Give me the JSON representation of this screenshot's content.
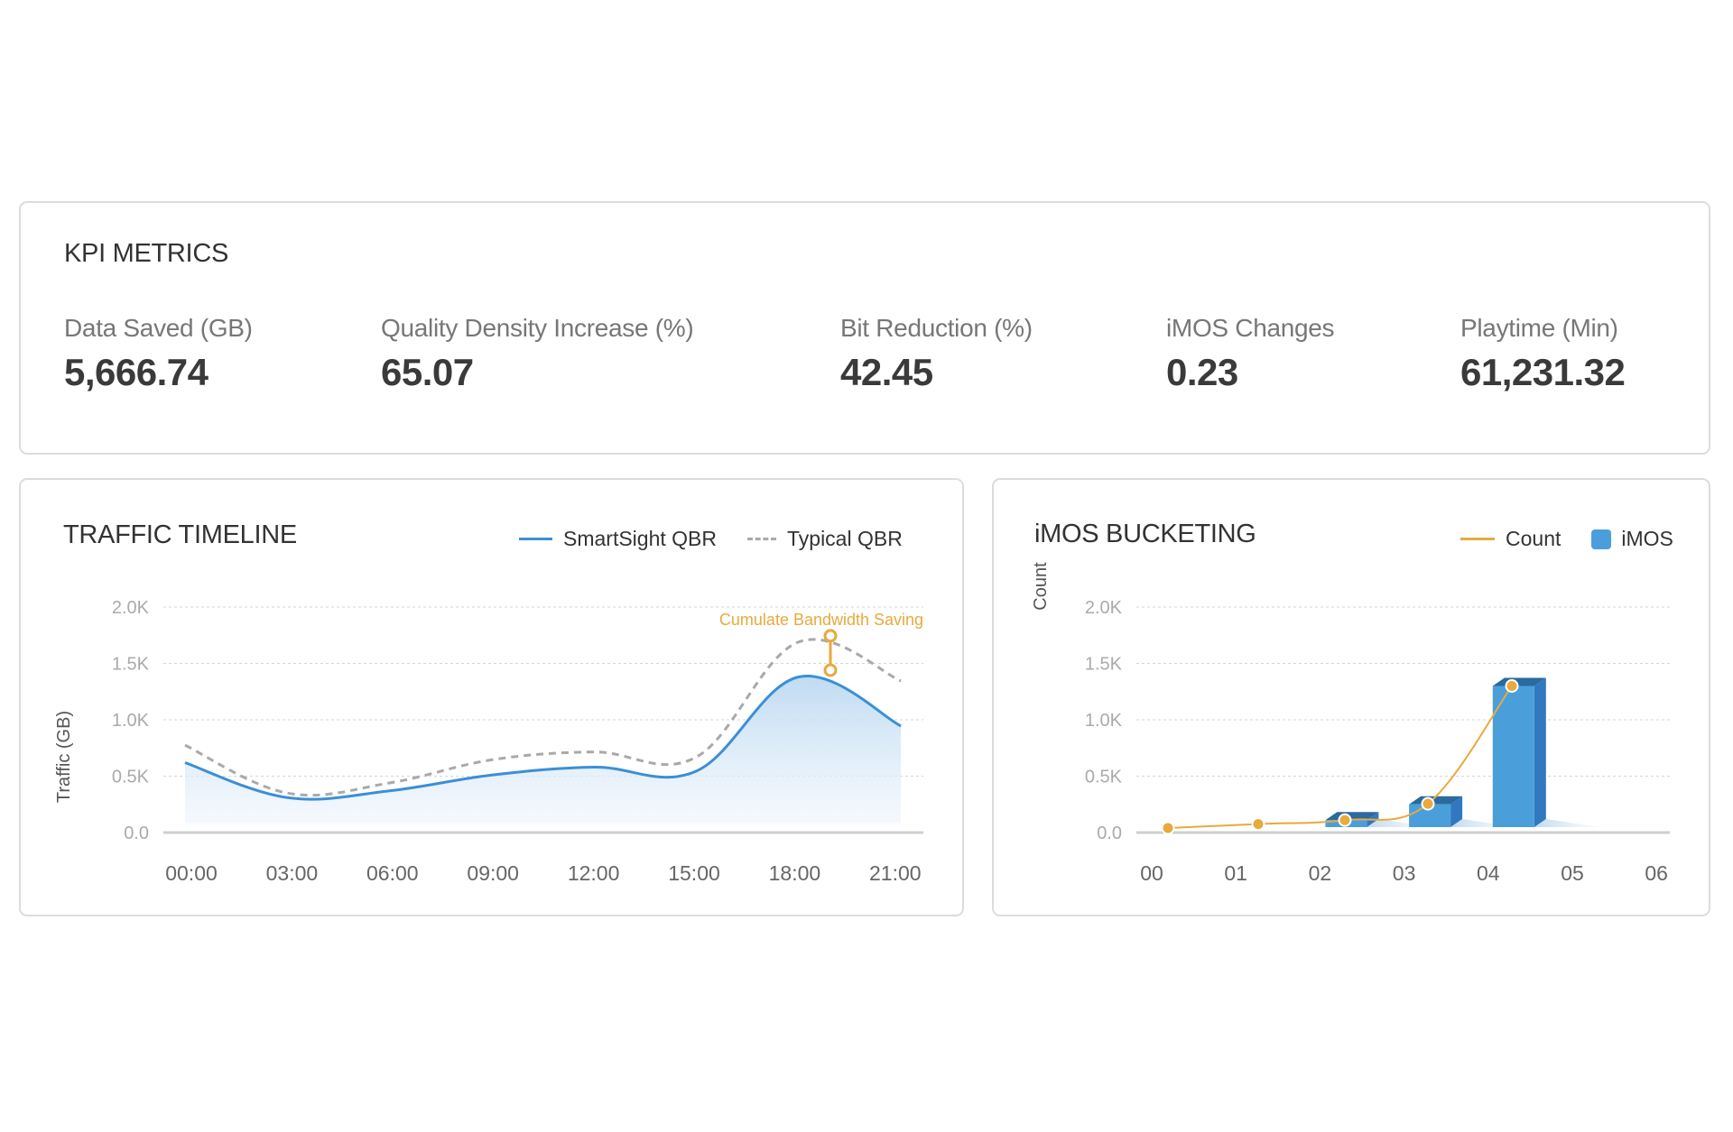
{
  "kpi": {
    "title": "KPI METRICS",
    "metrics": [
      {
        "label": "Data Saved (GB)",
        "value": "5,666.74"
      },
      {
        "label": "Quality Density Increase (%)",
        "value": "65.07"
      },
      {
        "label": "Bit Reduction (%)",
        "value": "42.45"
      },
      {
        "label": "iMOS Changes",
        "value": "0.23"
      },
      {
        "label": "Playtime (Min)",
        "value": "61,231.32"
      }
    ]
  },
  "traffic": {
    "title": "TRAFFIC TIMELINE",
    "legend": [
      {
        "label": "SmartSight QBR",
        "icon": "solid-line-icon",
        "color": "#3b8fd6"
      },
      {
        "label": "Typical QBR",
        "icon": "dashed-line-icon",
        "color": "#a9a9a9"
      }
    ],
    "annotation": "Cumulate Bandwidth Saving"
  },
  "imos": {
    "title": "iMOS BUCKETING",
    "legend": [
      {
        "label": "Count",
        "icon": "line-icon",
        "color": "#e9a93d"
      },
      {
        "label": "iMOS",
        "icon": "square-icon",
        "color": "#4a9fdb"
      }
    ]
  },
  "colors": {
    "accent_blue": "#3b8fd6",
    "bar_front": "#4a9fdb",
    "bar_top": "#2a6a9e",
    "bar_side": "#3178c0",
    "orange": "#e9a93d",
    "dashed_gray": "#a9a9a9"
  },
  "chart_data": [
    {
      "type": "area",
      "title": "TRAFFIC TIMELINE",
      "xlabel": "",
      "ylabel": "Traffic (GB)",
      "ylim": [
        0,
        2000
      ],
      "yticks": [
        "0.0",
        "0.5K",
        "1.0K",
        "1.5K",
        "2.0K"
      ],
      "categories": [
        "00:00",
        "03:00",
        "06:00",
        "09:00",
        "12:00",
        "15:00",
        "18:00",
        "21:00"
      ],
      "series": [
        {
          "name": "SmartSight QBR",
          "style": "solid-area",
          "values": [
            620,
            310,
            370,
            510,
            580,
            545,
            1380,
            945
          ]
        },
        {
          "name": "Typical QBR",
          "style": "dashed",
          "values": [
            775,
            350,
            440,
            645,
            715,
            670,
            1690,
            1345
          ]
        }
      ],
      "annotation": {
        "text": "Cumulate Bandwidth Saving",
        "x_position": "≈19:00",
        "from": 1440,
        "to": 1745
      },
      "grid": true,
      "legend_position": "top-right"
    },
    {
      "type": "bar",
      "title": "iMOS BUCKETING",
      "xlabel": "",
      "ylabel": "Count",
      "ylim": [
        0,
        2000
      ],
      "yticks": [
        "0.0",
        "0.5K",
        "1.0K",
        "1.5K",
        "2.0K"
      ],
      "categories": [
        "00",
        "01",
        "02",
        "03",
        "04",
        "05",
        "06"
      ],
      "series": [
        {
          "name": "iMOS",
          "style": "3d-bar",
          "values": [
            0,
            0,
            110,
            250,
            1300,
            0,
            0
          ]
        },
        {
          "name": "Count",
          "style": "line-with-markers",
          "values": [
            40,
            75,
            110,
            255,
            1300,
            null,
            null
          ]
        }
      ],
      "grid": true,
      "legend_position": "top-right"
    }
  ]
}
